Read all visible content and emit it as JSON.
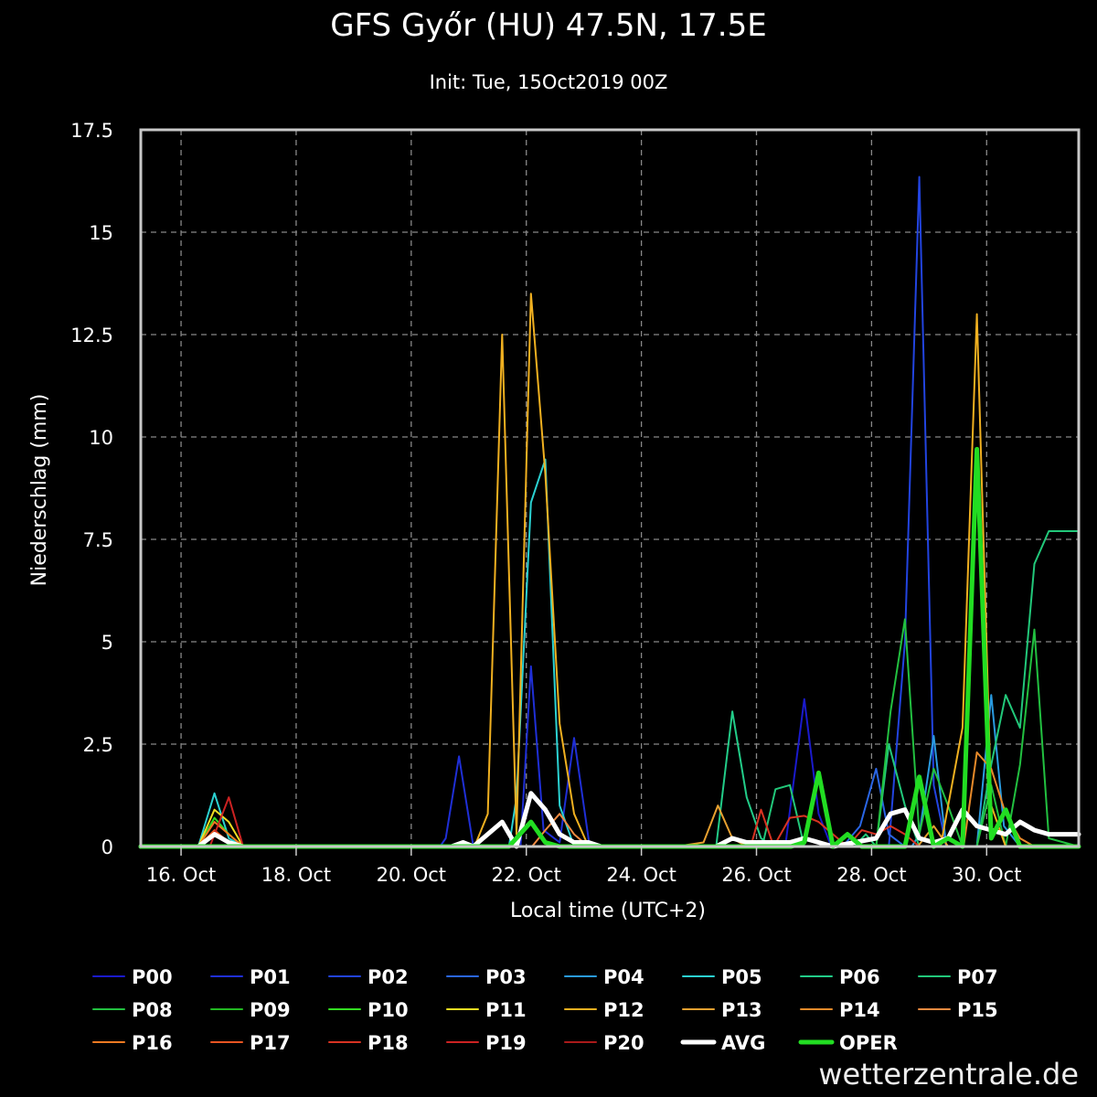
{
  "header": {
    "title": "GFS Győr (HU) 47.5N, 17.5E",
    "subtitle": "Init: Tue, 15Oct2019 00Z"
  },
  "brand": {
    "text": "wetterzentrale.de"
  },
  "chart_data": {
    "type": "line",
    "xlabel": "Local time (UTC+2)",
    "ylabel": "Niederschlag (mm)",
    "xlim": [
      15.3,
      31.6
    ],
    "ylim": [
      0,
      17.5
    ],
    "grid": true,
    "legend_position": "bottom",
    "x_ticks": [
      {
        "value": 16,
        "label": "16. Oct"
      },
      {
        "value": 18,
        "label": "18. Oct"
      },
      {
        "value": 20,
        "label": "20. Oct"
      },
      {
        "value": 22,
        "label": "22. Oct"
      },
      {
        "value": 24,
        "label": "24. Oct"
      },
      {
        "value": 26,
        "label": "26. Oct"
      },
      {
        "value": 28,
        "label": "28. Oct"
      },
      {
        "value": 30,
        "label": "30. Oct"
      }
    ],
    "y_ticks": [
      {
        "value": 0,
        "label": "0"
      },
      {
        "value": 2.5,
        "label": "2.5"
      },
      {
        "value": 5,
        "label": "5"
      },
      {
        "value": 7.5,
        "label": "7.5"
      },
      {
        "value": 10,
        "label": "10"
      },
      {
        "value": 12.5,
        "label": "12.5"
      },
      {
        "value": 15,
        "label": "15"
      },
      {
        "value": 17.5,
        "label": "17.5"
      }
    ],
    "series": [
      {
        "name": "P00",
        "color": "#1a1acc",
        "width": 2,
        "points": [
          [
            15.3,
            0
          ],
          [
            26.5,
            0
          ],
          [
            26.83,
            3.6
          ],
          [
            27.08,
            0.8
          ],
          [
            27.3,
            0
          ],
          [
            31.6,
            0
          ]
        ]
      },
      {
        "name": "P01",
        "color": "#1f2fd6",
        "width": 2,
        "points": [
          [
            15.3,
            0
          ],
          [
            20.5,
            0
          ],
          [
            20.6,
            0.2
          ],
          [
            20.83,
            2.2
          ],
          [
            21.08,
            0
          ],
          [
            21.9,
            0
          ],
          [
            22.08,
            4.4
          ],
          [
            22.3,
            0.4
          ],
          [
            22.58,
            0.1
          ],
          [
            22.83,
            2.65
          ],
          [
            23.1,
            0
          ],
          [
            31.6,
            0
          ]
        ]
      },
      {
        "name": "P02",
        "color": "#2244e0",
        "width": 2,
        "points": [
          [
            15.3,
            0
          ],
          [
            28.3,
            0
          ],
          [
            28.58,
            5
          ],
          [
            28.83,
            16.35
          ],
          [
            29.08,
            1.5
          ],
          [
            29.3,
            0
          ],
          [
            31.6,
            0
          ]
        ]
      },
      {
        "name": "P03",
        "color": "#2a66e6",
        "width": 2,
        "points": [
          [
            15.3,
            0
          ],
          [
            27.5,
            0
          ],
          [
            27.8,
            0.5
          ],
          [
            28.08,
            1.9
          ],
          [
            28.3,
            0.3
          ],
          [
            28.58,
            0
          ],
          [
            31.6,
            0
          ]
        ]
      },
      {
        "name": "P04",
        "color": "#2a9be0",
        "width": 2,
        "points": [
          [
            15.3,
            0
          ],
          [
            28.7,
            0
          ],
          [
            28.83,
            0.3
          ],
          [
            29.08,
            2.7
          ],
          [
            29.3,
            0
          ],
          [
            29.83,
            0
          ],
          [
            30.08,
            3.7
          ],
          [
            30.3,
            0.5
          ],
          [
            30.58,
            0
          ],
          [
            31.6,
            0
          ]
        ]
      },
      {
        "name": "P05",
        "color": "#2bd1d1",
        "width": 2,
        "points": [
          [
            15.3,
            0
          ],
          [
            16.3,
            0
          ],
          [
            16.58,
            1.3
          ],
          [
            16.83,
            0.2
          ],
          [
            17.08,
            0
          ],
          [
            21.7,
            0
          ],
          [
            21.83,
            1.2
          ],
          [
            22.08,
            8.4
          ],
          [
            22.33,
            9.45
          ],
          [
            22.58,
            1
          ],
          [
            22.83,
            0
          ],
          [
            31.6,
            0
          ]
        ]
      },
      {
        "name": "P06",
        "color": "#22cc88",
        "width": 2,
        "points": [
          [
            15.3,
            0
          ],
          [
            25.3,
            0
          ],
          [
            25.58,
            3.3
          ],
          [
            25.83,
            1.2
          ],
          [
            26.08,
            0.2
          ],
          [
            26.3,
            0
          ],
          [
            31.6,
            0
          ]
        ]
      },
      {
        "name": "P07",
        "color": "#22c87a",
        "width": 2,
        "points": [
          [
            15.3,
            0
          ],
          [
            26.1,
            0
          ],
          [
            26.33,
            1.4
          ],
          [
            26.58,
            1.5
          ],
          [
            26.83,
            0
          ],
          [
            27.7,
            0
          ],
          [
            27.9,
            0.3
          ],
          [
            28.08,
            0
          ],
          [
            28.3,
            2.5
          ],
          [
            28.58,
            1
          ],
          [
            28.83,
            0
          ],
          [
            29.83,
            0
          ],
          [
            30.08,
            2
          ],
          [
            30.33,
            3.7
          ],
          [
            30.58,
            2.9
          ],
          [
            30.83,
            6.9
          ],
          [
            31.08,
            7.7
          ],
          [
            31.6,
            7.7
          ]
        ]
      },
      {
        "name": "P08",
        "color": "#22c040",
        "width": 2,
        "points": [
          [
            15.3,
            0
          ],
          [
            28.08,
            0
          ],
          [
            28.33,
            3.3
          ],
          [
            28.58,
            5.55
          ],
          [
            28.83,
            0.3
          ],
          [
            29.08,
            1.9
          ],
          [
            29.33,
            1
          ],
          [
            29.58,
            0
          ],
          [
            29.83,
            0
          ],
          [
            30.08,
            1.5
          ],
          [
            30.33,
            0
          ],
          [
            30.58,
            2
          ],
          [
            30.83,
            5.3
          ],
          [
            31.08,
            0.2
          ],
          [
            31.6,
            0
          ]
        ]
      },
      {
        "name": "P09",
        "color": "#22b822",
        "width": 2,
        "points": [
          [
            15.3,
            0
          ],
          [
            31.6,
            0
          ]
        ]
      },
      {
        "name": "P10",
        "color": "#33dd22",
        "width": 2,
        "points": [
          [
            15.3,
            0
          ],
          [
            16.3,
            0
          ],
          [
            16.58,
            0.7
          ],
          [
            16.83,
            0.3
          ],
          [
            17.08,
            0
          ],
          [
            31.6,
            0
          ]
        ]
      },
      {
        "name": "P11",
        "color": "#eedd22",
        "width": 2,
        "points": [
          [
            15.3,
            0
          ],
          [
            16.3,
            0
          ],
          [
            16.58,
            0.9
          ],
          [
            16.83,
            0.6
          ],
          [
            17.08,
            0
          ],
          [
            31.6,
            0
          ]
        ]
      },
      {
        "name": "P12",
        "color": "#f0b020",
        "width": 2,
        "points": [
          [
            15.3,
            0
          ],
          [
            21.1,
            0
          ],
          [
            21.33,
            0.8
          ],
          [
            21.58,
            12.5
          ],
          [
            21.83,
            0.3
          ],
          [
            22.08,
            13.5
          ],
          [
            22.33,
            9.1
          ],
          [
            22.58,
            3
          ],
          [
            22.83,
            0.8
          ],
          [
            23.08,
            0
          ],
          [
            29.2,
            0
          ],
          [
            29.58,
            2.9
          ],
          [
            29.83,
            13
          ],
          [
            30.08,
            1
          ],
          [
            30.33,
            0
          ],
          [
            31.6,
            0
          ]
        ]
      },
      {
        "name": "P13",
        "color": "#e8a030",
        "width": 2,
        "points": [
          [
            15.3,
            0
          ],
          [
            24.6,
            0
          ],
          [
            25.08,
            0.1
          ],
          [
            25.33,
            1
          ],
          [
            25.58,
            0.2
          ],
          [
            25.83,
            0
          ],
          [
            28.8,
            0
          ],
          [
            29.08,
            0.5
          ],
          [
            29.33,
            0
          ],
          [
            31.6,
            0
          ]
        ]
      },
      {
        "name": "P14",
        "color": "#e88a2a",
        "width": 2,
        "points": [
          [
            15.3,
            0
          ],
          [
            29.6,
            0
          ],
          [
            29.83,
            2.3
          ],
          [
            30.08,
            1.9
          ],
          [
            30.33,
            0.8
          ],
          [
            30.58,
            0.2
          ],
          [
            30.83,
            0
          ],
          [
            31.6,
            0
          ]
        ]
      },
      {
        "name": "P15",
        "color": "#f08a40",
        "width": 2,
        "points": [
          [
            15.3,
            0
          ],
          [
            22.1,
            0
          ],
          [
            22.33,
            0.4
          ],
          [
            22.58,
            0.8
          ],
          [
            22.83,
            0.3
          ],
          [
            23.08,
            0
          ],
          [
            31.6,
            0
          ]
        ]
      },
      {
        "name": "P16",
        "color": "#f07a22",
        "width": 2,
        "points": [
          [
            15.3,
            0
          ],
          [
            16.3,
            0
          ],
          [
            16.58,
            0.6
          ],
          [
            16.83,
            0.3
          ],
          [
            17.08,
            0
          ],
          [
            31.6,
            0
          ]
        ]
      },
      {
        "name": "P17",
        "color": "#e85522",
        "width": 2,
        "points": [
          [
            15.3,
            0
          ],
          [
            16.3,
            0
          ],
          [
            16.58,
            0.4
          ],
          [
            16.83,
            0.1
          ],
          [
            17.08,
            0
          ],
          [
            31.6,
            0
          ]
        ]
      },
      {
        "name": "P18",
        "color": "#d83322",
        "width": 2,
        "points": [
          [
            15.3,
            0
          ],
          [
            25.9,
            0
          ],
          [
            26.08,
            0.9
          ],
          [
            26.3,
            0
          ],
          [
            26.58,
            0.7
          ],
          [
            26.83,
            0.75
          ],
          [
            27.08,
            0.6
          ],
          [
            27.33,
            0.3
          ],
          [
            27.58,
            0
          ],
          [
            27.83,
            0.4
          ],
          [
            28.08,
            0.3
          ],
          [
            28.33,
            0.5
          ],
          [
            28.58,
            0.3
          ],
          [
            28.83,
            0
          ],
          [
            31.6,
            0
          ]
        ]
      },
      {
        "name": "P19",
        "color": "#cc2222",
        "width": 2,
        "points": [
          [
            15.3,
            0
          ],
          [
            16.5,
            0
          ],
          [
            16.83,
            1.2
          ],
          [
            17.08,
            0
          ],
          [
            31.6,
            0
          ]
        ]
      },
      {
        "name": "P20",
        "color": "#aa1a1a",
        "width": 2,
        "points": [
          [
            15.3,
            0
          ],
          [
            31.6,
            0
          ]
        ]
      },
      {
        "name": "AVG",
        "color": "#ffffff",
        "width": 5,
        "points": [
          [
            15.3,
            0
          ],
          [
            16.3,
            0
          ],
          [
            16.58,
            0.3
          ],
          [
            16.83,
            0.1
          ],
          [
            17.08,
            0
          ],
          [
            20.7,
            0
          ],
          [
            20.9,
            0.1
          ],
          [
            21.08,
            0
          ],
          [
            21.58,
            0.6
          ],
          [
            21.83,
            0
          ],
          [
            22.08,
            1.3
          ],
          [
            22.33,
            0.9
          ],
          [
            22.58,
            0.3
          ],
          [
            22.83,
            0.1
          ],
          [
            23.08,
            0.1
          ],
          [
            23.3,
            0
          ],
          [
            25.3,
            0
          ],
          [
            25.58,
            0.2
          ],
          [
            25.83,
            0.1
          ],
          [
            26.08,
            0.1
          ],
          [
            26.58,
            0.1
          ],
          [
            26.83,
            0.2
          ],
          [
            27.08,
            0.1
          ],
          [
            27.33,
            0
          ],
          [
            28.08,
            0.2
          ],
          [
            28.33,
            0.8
          ],
          [
            28.58,
            0.9
          ],
          [
            28.83,
            0.2
          ],
          [
            29.08,
            0.1
          ],
          [
            29.33,
            0.2
          ],
          [
            29.58,
            0.9
          ],
          [
            29.83,
            0.5
          ],
          [
            30.08,
            0.4
          ],
          [
            30.33,
            0.3
          ],
          [
            30.58,
            0.6
          ],
          [
            30.83,
            0.4
          ],
          [
            31.08,
            0.3
          ],
          [
            31.6,
            0.3
          ]
        ]
      },
      {
        "name": "OPER",
        "color": "#22dd22",
        "width": 5,
        "points": [
          [
            15.3,
            0
          ],
          [
            21.7,
            0
          ],
          [
            22.08,
            0.6
          ],
          [
            22.33,
            0.1
          ],
          [
            22.58,
            0
          ],
          [
            26.6,
            0
          ],
          [
            26.83,
            0.1
          ],
          [
            27.08,
            1.8
          ],
          [
            27.33,
            0
          ],
          [
            27.58,
            0.3
          ],
          [
            27.83,
            0
          ],
          [
            28.58,
            0
          ],
          [
            28.83,
            1.7
          ],
          [
            29.08,
            0
          ],
          [
            29.33,
            0.2
          ],
          [
            29.58,
            0
          ],
          [
            29.83,
            9.7
          ],
          [
            30.08,
            0.2
          ],
          [
            30.33,
            0.9
          ],
          [
            30.58,
            0
          ],
          [
            31.6,
            0
          ]
        ]
      }
    ]
  }
}
